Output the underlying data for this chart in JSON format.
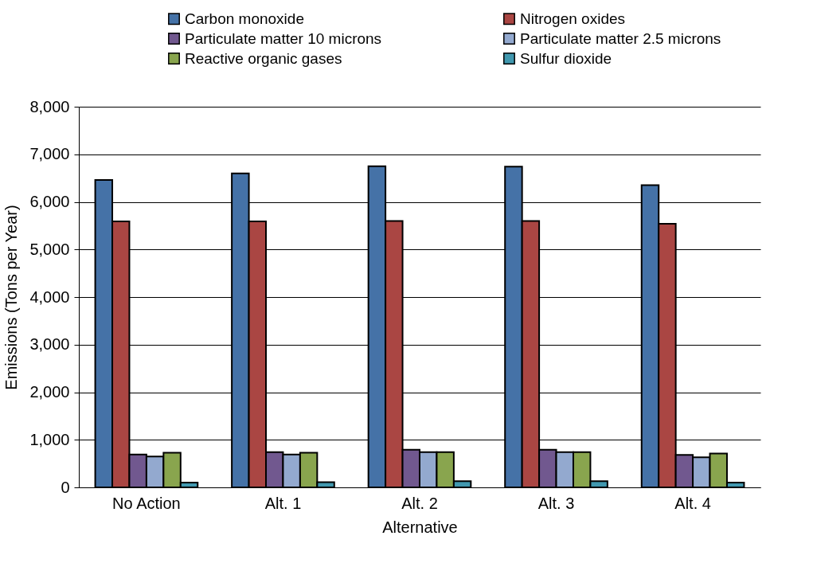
{
  "chart_data": {
    "type": "bar",
    "xlabel": "Alternative",
    "ylabel": "Emissions (Tons per Year)",
    "categories": [
      "No Action",
      "Alt. 1",
      "Alt. 2",
      "Alt. 3",
      "Alt. 4"
    ],
    "series": [
      {
        "name": "Carbon monoxide",
        "color": "#4572a7",
        "values": [
          6460,
          6600,
          6750,
          6740,
          6350
        ]
      },
      {
        "name": "Nitrogen oxides",
        "color": "#aa4643",
        "values": [
          5590,
          5590,
          5600,
          5600,
          5540
        ]
      },
      {
        "name": "Particulate matter 10 microns",
        "color": "#71588f",
        "values": [
          690,
          740,
          790,
          790,
          680
        ]
      },
      {
        "name": "Particulate matter 2.5 microns",
        "color": "#93a9cf",
        "values": [
          650,
          690,
          740,
          740,
          630
        ]
      },
      {
        "name": "Reactive organic gases",
        "color": "#89a54e",
        "values": [
          730,
          730,
          740,
          740,
          710
        ]
      },
      {
        "name": "Sulfur dioxide",
        "color": "#4198af",
        "values": [
          100,
          110,
          130,
          130,
          100
        ]
      }
    ],
    "ylim": [
      0,
      8000
    ],
    "yticks": [
      0,
      {
        "value": 1000,
        "label": "1,000"
      },
      {
        "value": 2000,
        "label": "2,000"
      },
      {
        "value": 3000,
        "label": "3,000"
      },
      {
        "value": 4000,
        "label": "4,000"
      },
      {
        "value": 5000,
        "label": "5,000"
      },
      {
        "value": 6000,
        "label": "6,000"
      },
      {
        "value": 7000,
        "label": "7,000"
      },
      {
        "value": 8000,
        "label": "8,000"
      }
    ],
    "grid": "y",
    "legend": "top"
  }
}
